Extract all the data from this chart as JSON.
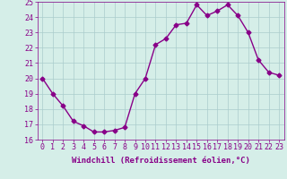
{
  "x": [
    0,
    1,
    2,
    3,
    4,
    5,
    6,
    7,
    8,
    9,
    10,
    11,
    12,
    13,
    14,
    15,
    16,
    17,
    18,
    19,
    20,
    21,
    22,
    23
  ],
  "y": [
    20.0,
    19.0,
    18.2,
    17.2,
    16.9,
    16.5,
    16.5,
    16.6,
    16.8,
    19.0,
    20.0,
    22.2,
    22.6,
    23.5,
    23.6,
    24.8,
    24.1,
    24.4,
    24.8,
    24.1,
    23.0,
    21.2,
    20.4,
    20.2
  ],
  "line_color": "#880088",
  "marker": "D",
  "marker_size": 2.5,
  "bg_color": "#d5eee8",
  "grid_color": "#aacccc",
  "xlabel": "Windchill (Refroidissement éolien,°C)",
  "ylim": [
    16,
    25
  ],
  "xlim": [
    -0.5,
    23.5
  ],
  "yticks": [
    16,
    17,
    18,
    19,
    20,
    21,
    22,
    23,
    24,
    25
  ],
  "xticks": [
    0,
    1,
    2,
    3,
    4,
    5,
    6,
    7,
    8,
    9,
    10,
    11,
    12,
    13,
    14,
    15,
    16,
    17,
    18,
    19,
    20,
    21,
    22,
    23
  ],
  "label_color": "#880088",
  "font_size": 6.0,
  "xlabel_fontsize": 6.5,
  "linewidth": 1.0
}
